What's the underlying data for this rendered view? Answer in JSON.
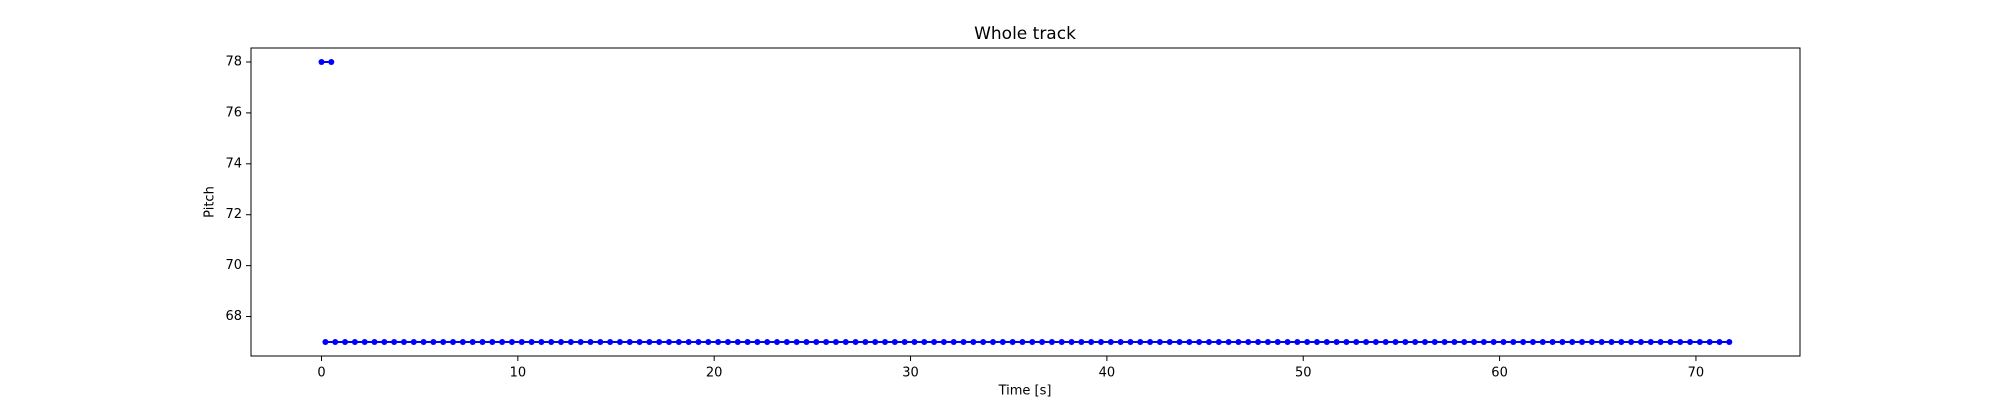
{
  "chart_data": {
    "type": "line",
    "title": "Whole track",
    "xlabel": "Time [s]",
    "ylabel": "Pitch",
    "xlim": [
      -3.59,
      75.3
    ],
    "ylim": [
      66.45,
      78.55
    ],
    "xticks": [
      0,
      10,
      20,
      30,
      40,
      50,
      60,
      70
    ],
    "yticks": [
      68,
      70,
      72,
      74,
      76,
      78
    ],
    "series": [
      {
        "color": "#0000ff",
        "x": [
          0,
          0.5,
          null,
          0.2,
          0.7,
          1.2,
          1.7,
          2.2,
          2.7,
          3.2,
          3.7,
          4.2,
          4.7,
          5.2,
          5.7,
          6.2,
          6.7,
          7.2,
          7.7,
          8.2,
          8.7,
          9.2,
          9.7,
          10.2,
          10.7,
          11.2,
          11.7,
          12.2,
          12.7,
          13.2,
          13.7,
          14.2,
          14.7,
          15.2,
          15.7,
          16.2,
          16.7,
          17.2,
          17.7,
          18.2,
          18.7,
          19.2,
          19.7,
          20.2,
          20.7,
          21.2,
          21.7,
          22.2,
          22.7,
          23.2,
          23.7,
          24.2,
          24.7,
          25.2,
          25.7,
          26.2,
          26.7,
          27.2,
          27.7,
          28.2,
          28.7,
          29.2,
          29.7,
          30.2,
          30.7,
          31.2,
          31.7,
          32.2,
          32.7,
          33.2,
          33.7,
          34.2,
          34.7,
          35.2,
          35.7,
          36.2,
          36.7,
          37.2,
          37.7,
          38.2,
          38.7,
          39.2,
          39.7,
          40.2,
          40.7,
          41.2,
          41.7,
          42.2,
          42.7,
          43.2,
          43.7,
          44.2,
          44.7,
          45.2,
          45.7,
          46.2,
          46.7,
          47.2,
          47.7,
          48.2,
          48.7,
          49.2,
          49.7,
          50.2,
          50.7,
          51.2,
          51.7,
          52.2,
          52.7,
          53.2,
          53.7,
          54.2,
          54.7,
          55.2,
          55.7,
          56.2,
          56.7,
          57.2,
          57.7,
          58.2,
          58.7,
          59.2,
          59.7,
          60.2,
          60.7,
          61.2,
          61.7,
          62.2,
          62.7,
          63.2,
          63.7,
          64.2,
          64.7,
          65.2,
          65.7,
          66.2,
          66.7,
          67.2,
          67.7,
          68.2,
          68.7,
          69.2,
          69.7,
          70.2,
          70.7,
          71.2,
          71.7
        ],
        "values": [
          78,
          78,
          null,
          67,
          67,
          67,
          67,
          67,
          67,
          67,
          67,
          67,
          67,
          67,
          67,
          67,
          67,
          67,
          67,
          67,
          67,
          67,
          67,
          67,
          67,
          67,
          67,
          67,
          67,
          67,
          67,
          67,
          67,
          67,
          67,
          67,
          67,
          67,
          67,
          67,
          67,
          67,
          67,
          67,
          67,
          67,
          67,
          67,
          67,
          67,
          67,
          67,
          67,
          67,
          67,
          67,
          67,
          67,
          67,
          67,
          67,
          67,
          67,
          67,
          67,
          67,
          67,
          67,
          67,
          67,
          67,
          67,
          67,
          67,
          67,
          67,
          67,
          67,
          67,
          67,
          67,
          67,
          67,
          67,
          67,
          67,
          67,
          67,
          67,
          67,
          67,
          67,
          67,
          67,
          67,
          67,
          67,
          67,
          67,
          67,
          67,
          67,
          67,
          67,
          67,
          67,
          67,
          67,
          67,
          67,
          67,
          67,
          67,
          67,
          67,
          67,
          67,
          67,
          67,
          67,
          67,
          67,
          67,
          67,
          67,
          67,
          67,
          67,
          67,
          67,
          67,
          67,
          67,
          67,
          67,
          67,
          67,
          67,
          67,
          67,
          67,
          67,
          67,
          67,
          67,
          67,
          67
        ]
      }
    ]
  }
}
